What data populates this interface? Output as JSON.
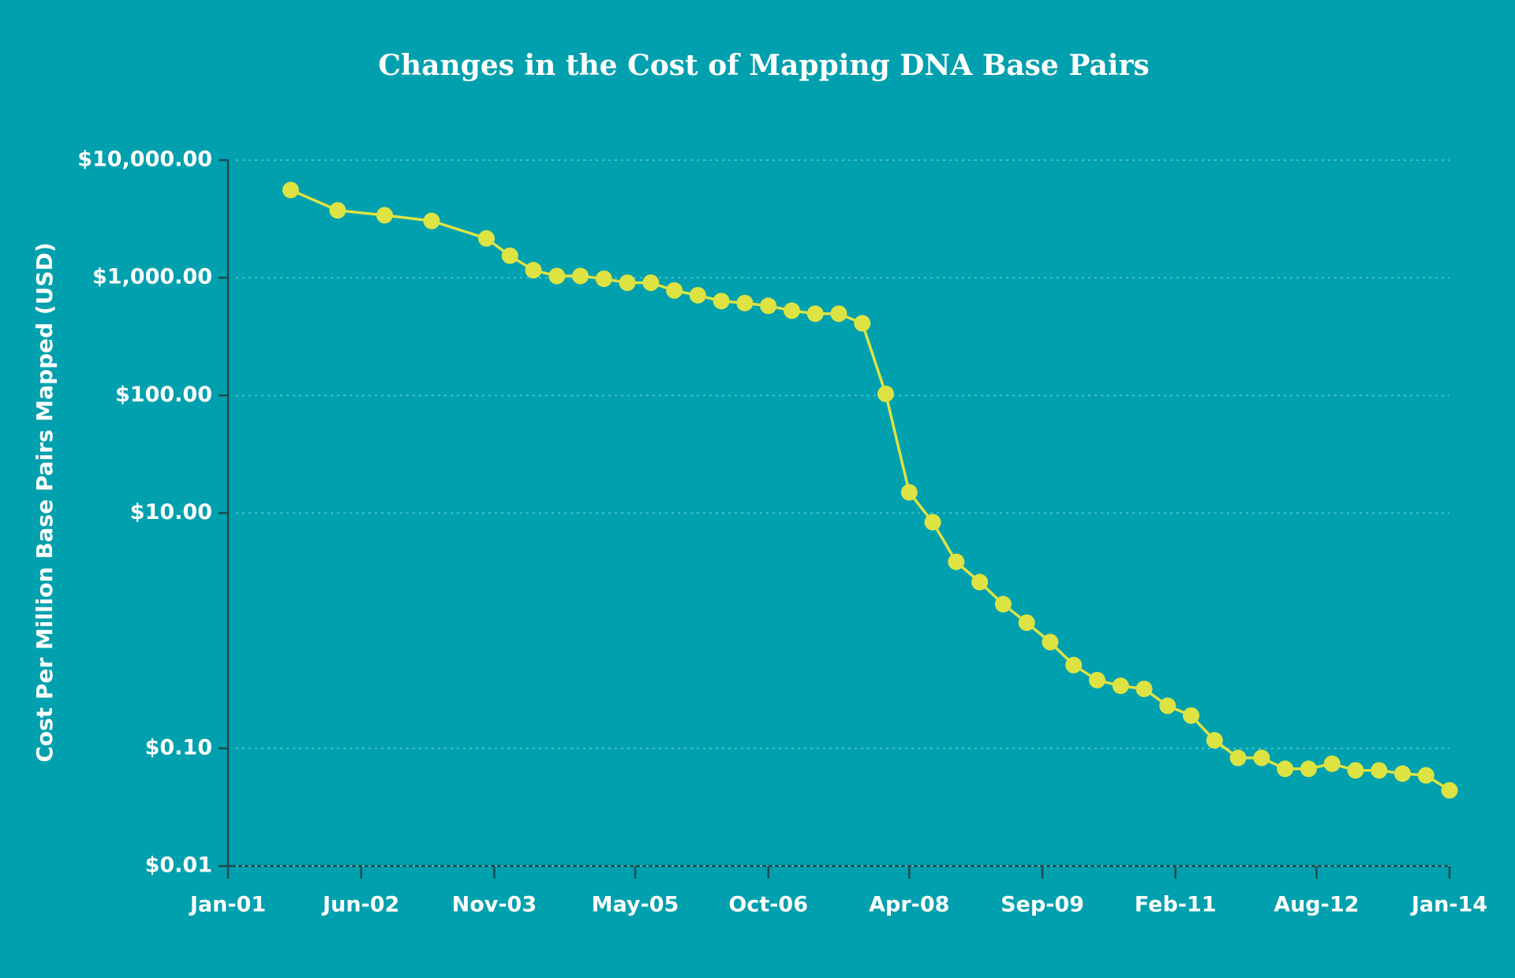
{
  "chart_data": {
    "type": "line",
    "title": "Changes in the Cost of Mapping DNA Base Pairs",
    "y_label": "Cost Per Million Base Pairs Mapped (USD)",
    "x": [
      "Sep-01",
      "Mar-02",
      "Sep-02",
      "Mar-03",
      "Oct-03",
      "Jan-04",
      "Apr-04",
      "Jul-04",
      "Oct-04",
      "Jan-05",
      "Apr-05",
      "Jul-05",
      "Oct-05",
      "Jan-06",
      "Apr-06",
      "Jul-06",
      "Oct-06",
      "Jan-07",
      "Apr-07",
      "Jul-07",
      "Oct-07",
      "Jan-08",
      "Apr-08",
      "Jul-08",
      "Oct-08",
      "Jan-09",
      "Apr-09",
      "Jul-09",
      "Oct-09",
      "Jan-10",
      "Apr-10",
      "Jul-10",
      "Oct-10",
      "Jan-11",
      "Apr-11",
      "Jul-11",
      "Oct-11",
      "Jan-12",
      "Apr-12",
      "Jul-12",
      "Oct-12",
      "Jan-13",
      "Apr-13",
      "Jul-13",
      "Oct-13",
      "Jan-14"
    ],
    "values": [
      5570,
      3740,
      3400,
      3040,
      2160,
      1540,
      1160,
      1035,
      1035,
      980,
      907,
      907,
      780,
      710,
      634,
      610,
      577,
      525,
      495,
      495,
      410,
      103,
      15.0,
      8.36,
      3.85,
      2.59,
      1.68,
      1.17,
      0.8,
      0.51,
      0.38,
      0.34,
      0.32,
      0.23,
      0.19,
      0.117,
      0.083,
      0.083,
      0.067,
      0.067,
      0.074,
      0.065,
      0.065,
      0.061,
      0.059,
      0.044
    ],
    "color": "#dde343",
    "xlim": [
      "Jan-01",
      "Jan-14"
    ],
    "xticks": [
      "Jan-01",
      "Jun-02",
      "Nov-03",
      "May-05",
      "Oct-06",
      "Apr-08",
      "Sep-09",
      "Feb-11",
      "Aug-12",
      "Jan-14"
    ],
    "ylim": [
      0.01,
      10000
    ],
    "log_scale": true,
    "yticks": [
      {
        "value": 10000,
        "label": "$10,000.00"
      },
      {
        "value": 1000,
        "label": "$1,000.00"
      },
      {
        "value": 100,
        "label": "$100.00"
      },
      {
        "value": 10,
        "label": "$10.00"
      },
      {
        "value": 0.1,
        "label": "$0.10"
      },
      {
        "value": 0.01,
        "label": "$0.01"
      }
    ],
    "grid": true
  }
}
